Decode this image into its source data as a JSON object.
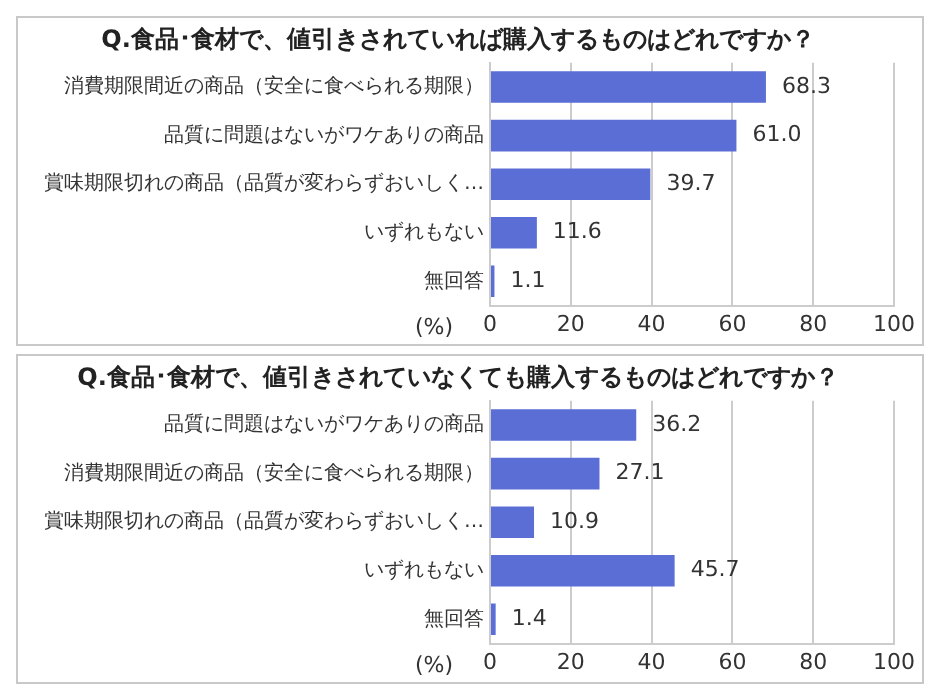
{
  "chart_data": [
    {
      "type": "bar",
      "orientation": "horizontal",
      "title": "Q.食品･食材で、値引きされていれば購入するものはどれですか？",
      "xlabel": "(%)",
      "categories": [
        "消費期限間近の商品（安全に食べられる期限）",
        "品質に問題はないがワケありの商品",
        "賞味期限切れの商品（品質が変わらずおいしく…",
        "いずれもない",
        "無回答"
      ],
      "values": [
        68.3,
        61.0,
        39.7,
        11.6,
        1.1
      ],
      "value_labels": [
        "68.3",
        "61.0",
        "39.7",
        "11.6",
        "1.1"
      ],
      "color": "#5a6ed6",
      "xlim": [
        0,
        100
      ],
      "xticks": [
        0,
        20,
        40,
        60,
        80,
        100
      ],
      "grid": "x"
    },
    {
      "type": "bar",
      "orientation": "horizontal",
      "title": "Q.食品･食材で、値引きされていなくても購入するものはどれですか？",
      "xlabel": "(%)",
      "categories": [
        "品質に問題はないがワケありの商品",
        "消費期限間近の商品（安全に食べられる期限）",
        "賞味期限切れの商品（品質が変わらずおいしく…",
        "いずれもない",
        "無回答"
      ],
      "values": [
        36.2,
        27.1,
        10.9,
        45.7,
        1.4
      ],
      "value_labels": [
        "36.2",
        "27.1",
        "10.9",
        "45.7",
        "1.4"
      ],
      "color": "#5a6ed6",
      "xlim": [
        0,
        100
      ],
      "xticks": [
        0,
        20,
        40,
        60,
        80,
        100
      ],
      "grid": "x"
    }
  ]
}
